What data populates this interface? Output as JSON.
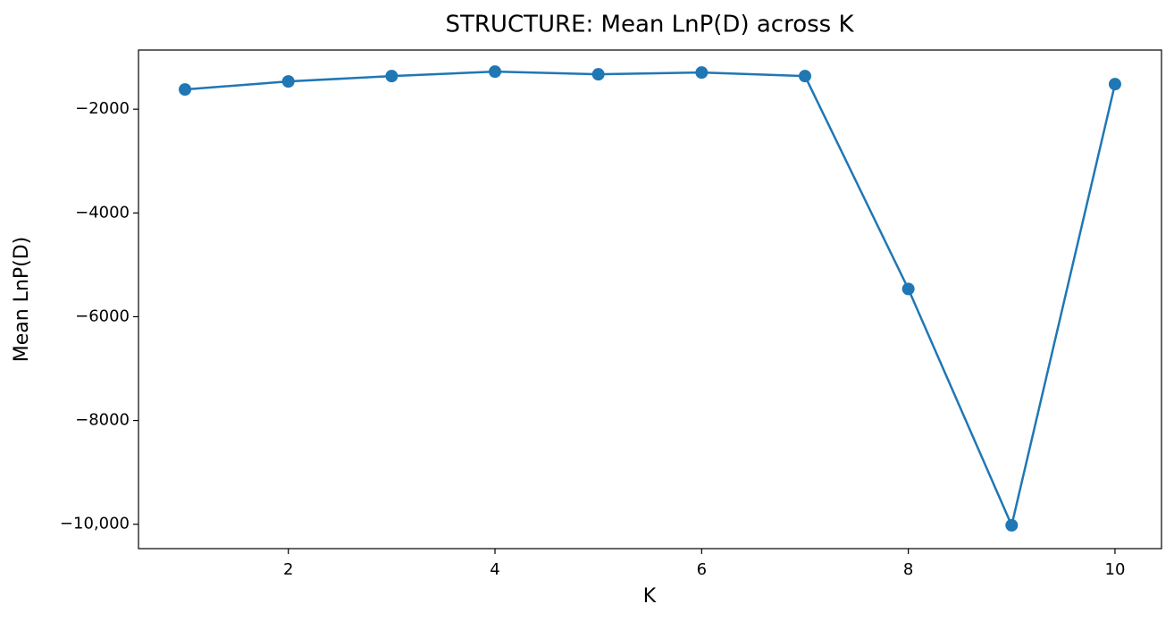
{
  "chart_data": {
    "type": "line",
    "title": "STRUCTURE: Mean LnP(D) across K",
    "xlabel": "K",
    "ylabel": "Mean LnP(D)",
    "x": [
      1,
      2,
      3,
      4,
      5,
      6,
      7,
      8,
      9,
      10
    ],
    "series": [
      {
        "name": "Mean LnP(D)",
        "color": "#1f77b4",
        "values": [
          -1620,
          -1465,
          -1362,
          -1276,
          -1328,
          -1293,
          -1362,
          -5465,
          -10020,
          -1517
        ]
      }
    ],
    "xlim": [
      0.55,
      10.45
    ],
    "xticks": [
      2,
      4,
      6,
      8,
      10
    ],
    "ylim": [
      -10470,
      -860
    ],
    "yticks": [
      {
        "value": -10000,
        "label": "−10,000"
      },
      {
        "value": -8000,
        "label": "−8000"
      },
      {
        "value": -6000,
        "label": "−6000"
      },
      {
        "value": -4000,
        "label": "−4000"
      },
      {
        "value": -2000,
        "label": "−2000"
      }
    ],
    "grid": false
  }
}
